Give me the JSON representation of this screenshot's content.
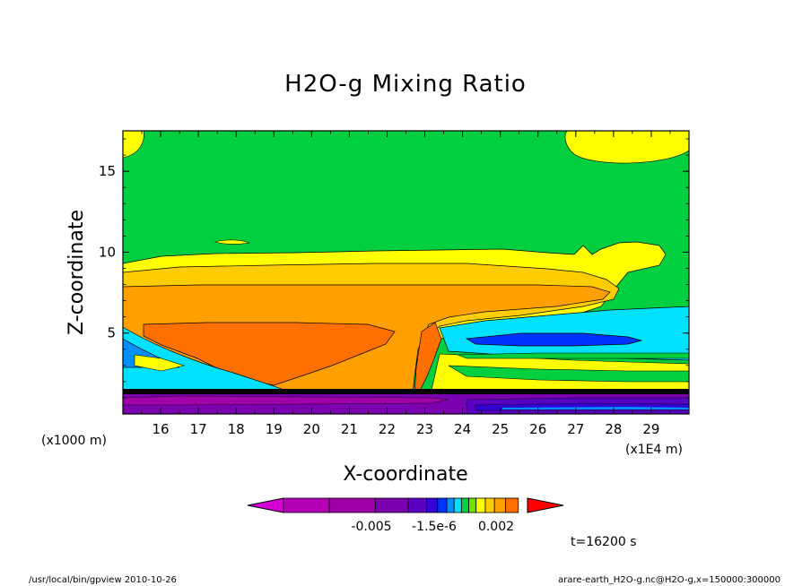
{
  "chart_data": {
    "type": "heatmap",
    "title": "H2O-g Mixing Ratio",
    "xlabel": "X-coordinate",
    "ylabel": "Z-coordinate",
    "x_unit_label": "(x1E4 m)",
    "y_unit_label": "(x1000 m)",
    "x_ticks": [
      16,
      17,
      18,
      19,
      20,
      21,
      22,
      23,
      24,
      25,
      26,
      27,
      28,
      29
    ],
    "y_ticks": [
      5,
      10,
      15
    ],
    "xlim": [
      15,
      30
    ],
    "ylim": [
      0,
      17.5
    ],
    "colorbar": {
      "labels": [
        "-0.005",
        "-1.5e-6",
        "0.002"
      ],
      "colors": [
        "#d400d4",
        "#b300b3",
        "#a000a8",
        "#7a00b0",
        "#5a00c0",
        "#3300d6",
        "#0033ff",
        "#0090ff",
        "#00e0ff",
        "#00d040",
        "#70e000",
        "#ffff00",
        "#ffcc00",
        "#ffa000",
        "#ff7000",
        "#ff0000"
      ]
    },
    "time_label": "t=16200 s",
    "grid": false
  },
  "footer": {
    "left": "/usr/local/bin/gpview  2010-10-26",
    "right": "arare-earth_H2O-g.nc@H2O-g,x=150000:300000"
  }
}
